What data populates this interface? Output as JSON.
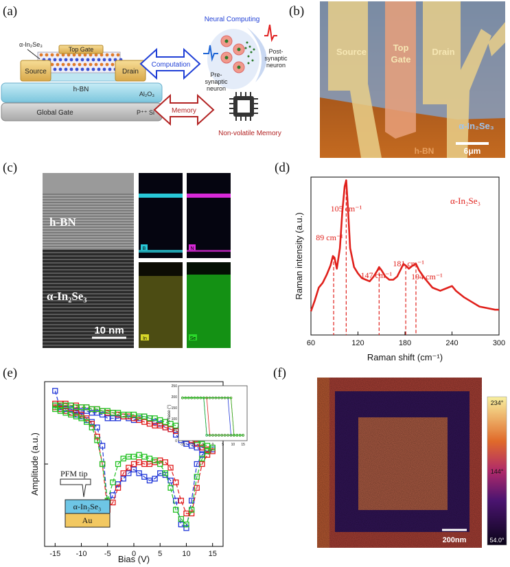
{
  "panels": {
    "a": "(a)",
    "b": "(b)",
    "c": "(c)",
    "d": "(d)",
    "e": "(e)",
    "f": "(f)"
  },
  "device_a": {
    "material_label": "α-In₂Se₃",
    "top_gate": "Top Gate",
    "source": "Source",
    "drain": "Drain",
    "hbn": "h-BN",
    "al2o3": "Al₂O₃",
    "global_gate": "Global Gate",
    "psi": "P⁺⁺ Si",
    "computation": "Computation",
    "memory": "Memory",
    "neural_computing": "Neural Computing",
    "pre_synaptic": [
      "Pre-",
      "synaptic",
      "neuron"
    ],
    "post_synaptic": [
      "Post-",
      "synaptic",
      "neuron"
    ],
    "nonvolatile": "Non-volatile Memory",
    "colors": {
      "computation": "#1f3fd6",
      "memory": "#b22222",
      "hbn": "#9ad4e6",
      "gold": "#e8c26a"
    }
  },
  "micrograph_b": {
    "source": "Source",
    "top_gate": [
      "Top",
      "Gate"
    ],
    "drain": "Drain",
    "material": "α-In₂Se₃",
    "hbn": "h-BN",
    "scale": "6μm"
  },
  "tem_c": {
    "hbn": "h-BN",
    "material": "α-In₂Se₃",
    "scale": "10 nm",
    "eds": [
      "B",
      "N",
      "In",
      "Se"
    ],
    "eds_colors": [
      "#28c8d8",
      "#d829d8",
      "#d8d829",
      "#29d829"
    ]
  },
  "chart_data": [
    {
      "type": "line",
      "panel": "d",
      "xlabel": "Raman shift (cm⁻¹)",
      "ylabel": "Raman intensity (a.u.)",
      "series_label": "α-In₂Se₃",
      "xlim": [
        60,
        300
      ],
      "xticks": [
        60,
        120,
        180,
        240,
        300
      ],
      "color": "#e0201b",
      "x": [
        60,
        65,
        70,
        75,
        80,
        85,
        88,
        90,
        93,
        97,
        100,
        103,
        105,
        107,
        110,
        115,
        120,
        125,
        130,
        135,
        140,
        145,
        147,
        150,
        155,
        160,
        165,
        170,
        175,
        178,
        181,
        185,
        190,
        194,
        198,
        205,
        215,
        225,
        235,
        240,
        245,
        255,
        265,
        275,
        285,
        295,
        300
      ],
      "y": [
        0.15,
        0.22,
        0.3,
        0.33,
        0.38,
        0.44,
        0.5,
        0.49,
        0.42,
        0.55,
        0.78,
        0.94,
        0.98,
        0.82,
        0.55,
        0.43,
        0.39,
        0.36,
        0.35,
        0.34,
        0.37,
        0.41,
        0.43,
        0.41,
        0.37,
        0.35,
        0.35,
        0.37,
        0.42,
        0.45,
        0.44,
        0.42,
        0.44,
        0.45,
        0.41,
        0.36,
        0.3,
        0.28,
        0.3,
        0.31,
        0.28,
        0.24,
        0.21,
        0.18,
        0.17,
        0.16,
        0.16
      ],
      "peaks": [
        {
          "x": 89,
          "label": "89 cm⁻¹"
        },
        {
          "x": 105,
          "label": "105 cm⁻¹"
        },
        {
          "x": 147,
          "label": "147 cm⁻¹"
        },
        {
          "x": 181,
          "label": "181 cm⁻¹"
        },
        {
          "x": 194,
          "label": "194 cm⁻¹"
        }
      ]
    },
    {
      "type": "line",
      "panel": "e",
      "xlabel": "Bias (V)",
      "ylabel": "Amplitude (a.u.)",
      "xlim": [
        -17,
        17
      ],
      "xticks": [
        -15,
        -10,
        -5,
        0,
        5,
        10,
        15
      ],
      "series": [
        {
          "color": "#2036d8",
          "x": [
            -15,
            -14,
            -13,
            -12,
            -11,
            -10,
            -9,
            -8,
            -7,
            -6,
            -5,
            -4,
            -3,
            -2,
            -1,
            0,
            1,
            2,
            3,
            4,
            5,
            6,
            7,
            8,
            9,
            10,
            11,
            12,
            13,
            14,
            15,
            14,
            13,
            12,
            11,
            10,
            9,
            8,
            7,
            6,
            5,
            4,
            3,
            2,
            1,
            0,
            -1,
            -2,
            -3,
            -4,
            -5,
            -6,
            -7,
            -8,
            -9,
            -10,
            -11,
            -12,
            -13,
            -14,
            -15
          ],
          "y": [
            0.95,
            0.85,
            0.84,
            0.83,
            0.82,
            0.81,
            0.79,
            0.78,
            0.75,
            0.65,
            0.32,
            0.38,
            0.44,
            0.47,
            0.5,
            0.52,
            0.5,
            0.48,
            0.46,
            0.47,
            0.5,
            0.49,
            0.46,
            0.35,
            0.22,
            0.2,
            0.35,
            0.55,
            0.6,
            0.62,
            0.63,
            0.62,
            0.63,
            0.64,
            0.65,
            0.66,
            0.68,
            0.71,
            0.74,
            0.75,
            0.77,
            0.78,
            0.8,
            0.81,
            0.8,
            0.79,
            0.8,
            0.81,
            0.8,
            0.8,
            0.8,
            0.82,
            0.83,
            0.83,
            0.84,
            0.84,
            0.84,
            0.85,
            0.85,
            0.86,
            0.87
          ]
        },
        {
          "color": "#e01a1a",
          "x": [
            -15,
            -14,
            -13,
            -12,
            -11,
            -10,
            -9,
            -8,
            -7,
            -6,
            -5,
            -4,
            -3,
            -2,
            -1,
            0,
            1,
            2,
            3,
            4,
            5,
            6,
            7,
            8,
            9,
            10,
            11,
            12,
            13,
            14,
            15,
            14,
            13,
            12,
            11,
            10,
            9,
            8,
            7,
            6,
            5,
            4,
            3,
            2,
            1,
            0,
            -1,
            -2,
            -3,
            -4,
            -5,
            -6,
            -7,
            -8,
            -9,
            -10,
            -11,
            -12,
            -13,
            -14,
            -15
          ],
          "y": [
            0.86,
            0.85,
            0.84,
            0.83,
            0.83,
            0.82,
            0.8,
            0.77,
            0.7,
            0.55,
            0.3,
            0.34,
            0.42,
            0.5,
            0.53,
            0.55,
            0.56,
            0.55,
            0.55,
            0.56,
            0.57,
            0.56,
            0.53,
            0.45,
            0.35,
            0.28,
            0.28,
            0.42,
            0.55,
            0.6,
            0.62,
            0.63,
            0.64,
            0.66,
            0.68,
            0.7,
            0.72,
            0.73,
            0.74,
            0.75,
            0.76,
            0.76,
            0.77,
            0.78,
            0.79,
            0.8,
            0.81,
            0.81,
            0.82,
            0.83,
            0.83,
            0.84,
            0.85,
            0.85,
            0.86,
            0.86,
            0.87,
            0.87,
            0.88,
            0.88,
            0.88
          ]
        },
        {
          "color": "#20c020",
          "x": [
            -15,
            -14,
            -13,
            -12,
            -11,
            -10,
            -9,
            -8,
            -7,
            -6,
            -5,
            -4,
            -3,
            -2,
            -1,
            0,
            1,
            2,
            3,
            4,
            5,
            6,
            7,
            8,
            9,
            10,
            11,
            12,
            13,
            14,
            15,
            14,
            13,
            12,
            11,
            10,
            9,
            8,
            7,
            6,
            5,
            4,
            3,
            2,
            1,
            0,
            -1,
            -2,
            -3,
            -4,
            -5,
            -6,
            -7,
            -8,
            -9,
            -10,
            -11,
            -12,
            -13,
            -14,
            -15
          ],
          "y": [
            0.85,
            0.84,
            0.83,
            0.82,
            0.81,
            0.8,
            0.78,
            0.75,
            0.68,
            0.55,
            0.35,
            0.45,
            0.55,
            0.58,
            0.59,
            0.59,
            0.6,
            0.59,
            0.58,
            0.57,
            0.55,
            0.5,
            0.42,
            0.3,
            0.25,
            0.22,
            0.3,
            0.48,
            0.58,
            0.62,
            0.64,
            0.65,
            0.66,
            0.68,
            0.7,
            0.72,
            0.74,
            0.76,
            0.77,
            0.78,
            0.79,
            0.8,
            0.8,
            0.81,
            0.81,
            0.82,
            0.82,
            0.82,
            0.83,
            0.83,
            0.84,
            0.84,
            0.85,
            0.85,
            0.86,
            0.86,
            0.86,
            0.87,
            0.87,
            0.87,
            0.87
          ]
        }
      ],
      "inset": {
        "ylabel": "Phase (°)",
        "xticks": [
          -15,
          -10,
          -5,
          0,
          5,
          10,
          15
        ],
        "yticks": [
          0,
          50,
          100,
          150,
          200,
          250
        ],
        "xlim": [
          -17,
          17
        ],
        "ylim": [
          0,
          250
        ]
      },
      "legend_tip": "PFM tip",
      "layers": [
        "α-In₂Se₃",
        "Au"
      ],
      "layer_colors": [
        "#6ec6e6",
        "#f2c861"
      ]
    }
  ],
  "pfm_f": {
    "colorbar_ticks": [
      "234°",
      "144°",
      "54.0°"
    ],
    "scale": "200nm"
  }
}
